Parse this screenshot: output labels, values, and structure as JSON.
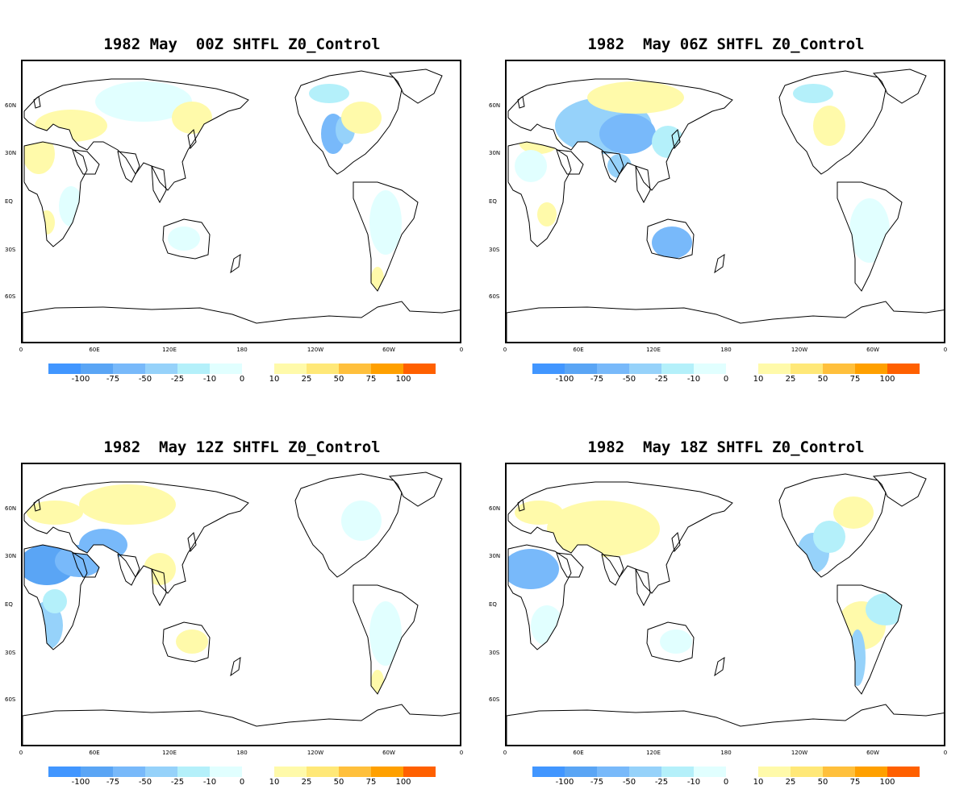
{
  "panels": [
    {
      "title": "1982 May  00Z SHTFL Z0_Control",
      "pattern": 0
    },
    {
      "title": "1982  May 06Z SHTFL Z0_Control",
      "pattern": 1
    },
    {
      "title": "1982  May 12Z SHTFL Z0_Control",
      "pattern": 2
    },
    {
      "title": "1982  May 18Z SHTFL Z0_Control",
      "pattern": 3
    }
  ],
  "lat_labels": [
    "60N",
    "30N",
    "EQ",
    "30S",
    "60S"
  ],
  "lon_labels": [
    "0",
    "60E",
    "120E",
    "180",
    "120W",
    "60W",
    "0"
  ],
  "colorbar": {
    "negative": {
      "colors": [
        "#4196ff",
        "#5aa5f5",
        "#78b9fa",
        "#96d2fa",
        "#b4f0fa",
        "#e1ffff"
      ],
      "labels": [
        "-100",
        "-75",
        "-50",
        "-25",
        "-10",
        "0"
      ]
    },
    "positive": {
      "colors": [
        "#fffaaa",
        "#ffe878",
        "#ffc03c",
        "#ffa000",
        "#ff6000"
      ],
      "labels": [
        "10",
        "25",
        "50",
        "75",
        "100"
      ]
    }
  },
  "colors": {
    "frame": "#000000",
    "coast": "#000000"
  }
}
